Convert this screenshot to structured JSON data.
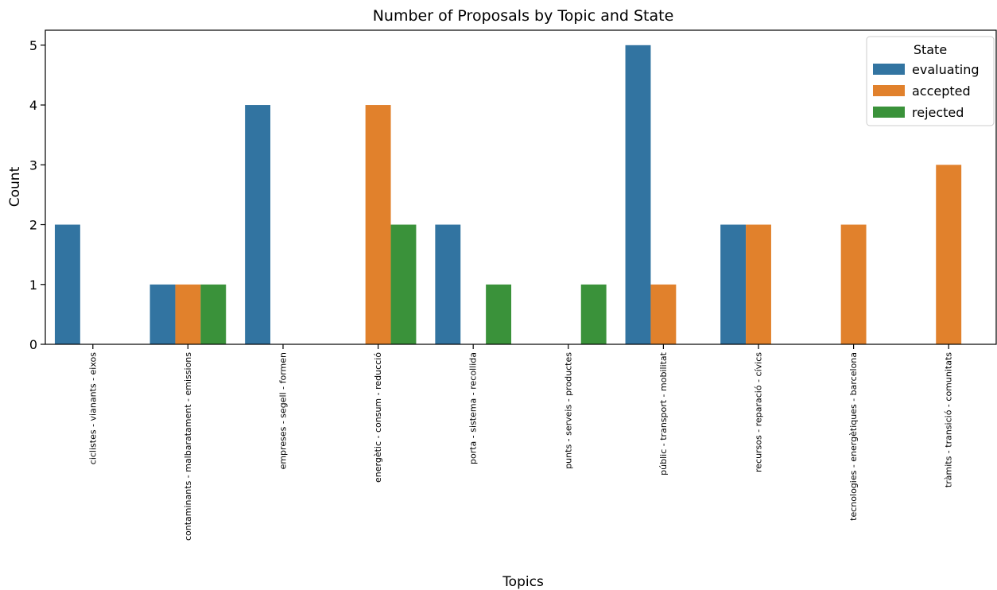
{
  "chart_data": {
    "type": "bar",
    "title": "Number of Proposals by Topic and State",
    "xlabel": "Topics",
    "ylabel": "Count",
    "ylim": [
      0,
      5.25
    ],
    "yticks": [
      0,
      1,
      2,
      3,
      4,
      5
    ],
    "grid": false,
    "legend": {
      "title": "State",
      "placement": "top-right"
    },
    "categories": [
      "ciclistes - vianants - eixos",
      "contaminants - malbaratament - emissions",
      "empreses - segell - formen",
      "energètic - consum - reducció",
      "porta - sistema - recollida",
      "punts - serveis - productes",
      "públic - transport - mobilitat",
      "recursos - reparació - cívics",
      "tecnologies - energètiques - barcelona",
      "tràmits - transició - comunitats"
    ],
    "series": [
      {
        "name": "evaluating",
        "color": "#3274a1",
        "values": [
          2,
          1,
          4,
          0,
          2,
          0,
          5,
          2,
          0,
          0
        ]
      },
      {
        "name": "accepted",
        "color": "#e1812c",
        "values": [
          0,
          1,
          0,
          4,
          0,
          0,
          1,
          2,
          2,
          3
        ]
      },
      {
        "name": "rejected",
        "color": "#3a923a",
        "values": [
          0,
          1,
          0,
          2,
          1,
          1,
          0,
          0,
          0,
          0
        ]
      }
    ]
  }
}
